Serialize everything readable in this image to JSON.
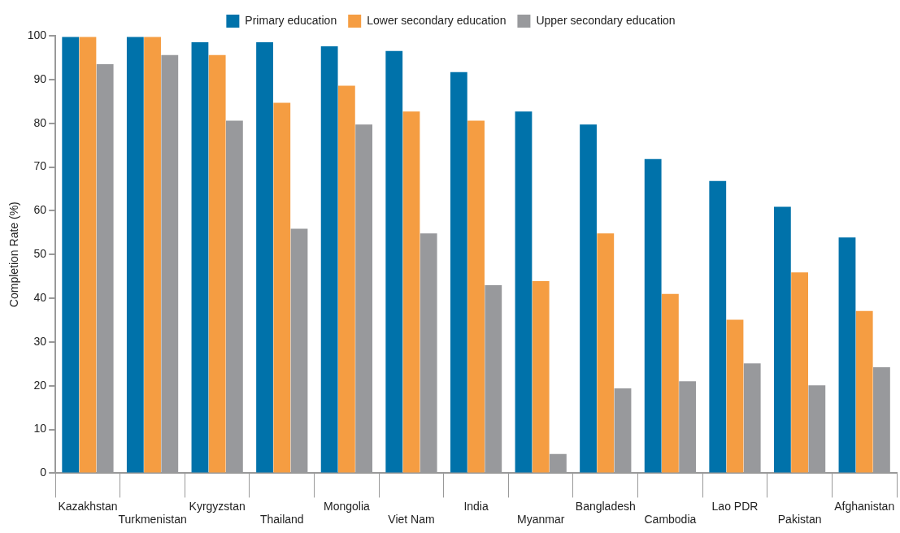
{
  "chart_data": {
    "type": "bar",
    "ylabel": "Completion Rate (%)",
    "categories": [
      "Kazakhstan",
      "Turkmenistan",
      "Kyrgyzstan",
      "Thailand",
      "Mongolia",
      "Viet Nam",
      "India",
      "Myanmar",
      "Bangladesh",
      "Cambodia",
      "Lao PDR",
      "Pakistan",
      "Afghanistan"
    ],
    "series": [
      {
        "name": "Primary education",
        "color": "#0072aa",
        "values": [
          99.7,
          99.7,
          98.5,
          98.5,
          97.6,
          96.5,
          91.7,
          82.7,
          79.7,
          71.8,
          66.8,
          60.9,
          53.9
        ]
      },
      {
        "name": "Lower secondary education",
        "color": "#f59d42",
        "values": [
          99.7,
          99.7,
          95.6,
          84.7,
          88.6,
          82.7,
          80.6,
          43.9,
          54.8,
          41.0,
          35.1,
          45.9,
          37.1
        ]
      },
      {
        "name": "Upper secondary education",
        "color": "#98999c",
        "values": [
          93.5,
          95.6,
          80.6,
          55.9,
          79.7,
          54.8,
          43.0,
          4.4,
          19.4,
          21.0,
          25.1,
          20.1,
          24.2
        ]
      }
    ],
    "ylim": [
      0,
      100
    ],
    "yticks": [
      0,
      10,
      20,
      30,
      40,
      50,
      60,
      70,
      80,
      90,
      100
    ],
    "grid": false,
    "legend": "top"
  }
}
